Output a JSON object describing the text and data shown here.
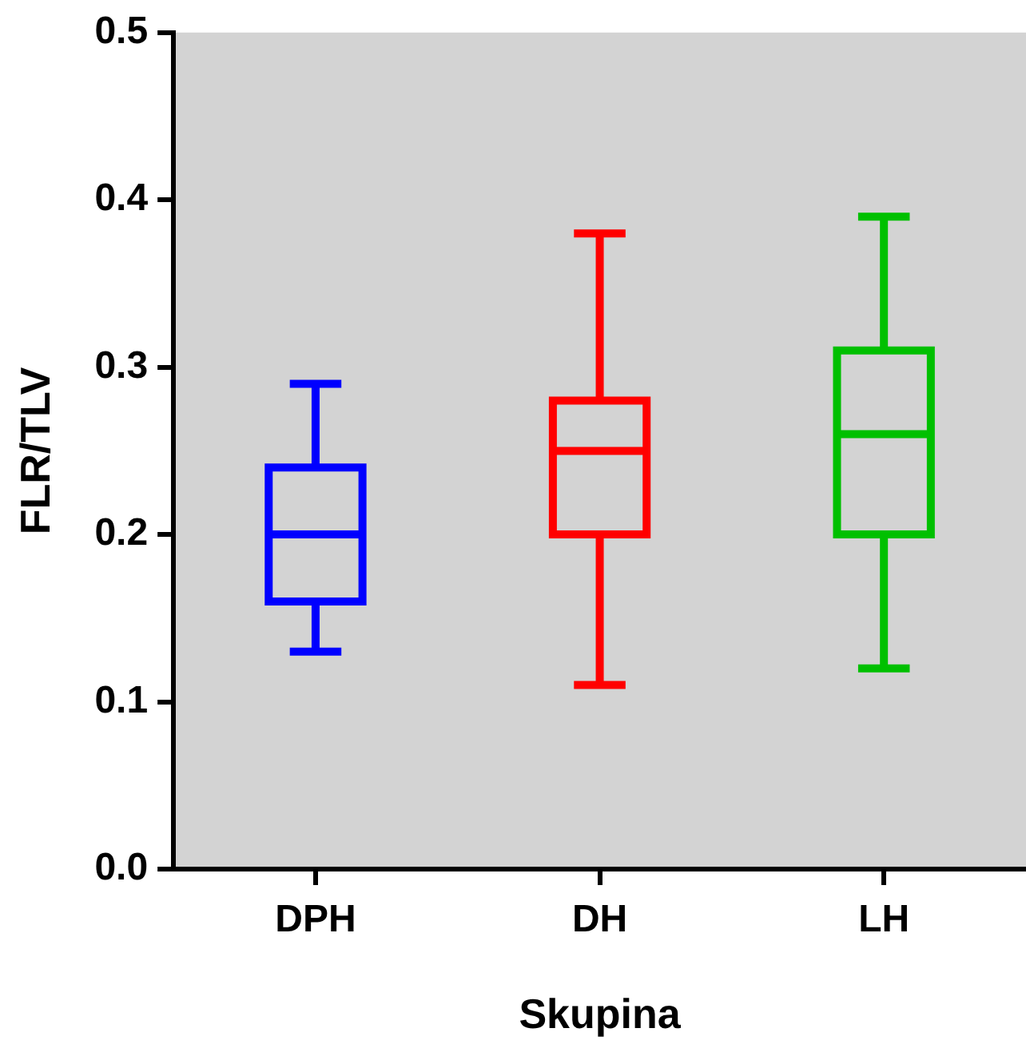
{
  "chart_data": {
    "type": "box",
    "xlabel": "Skupina",
    "ylabel": "FLR/TLV",
    "categories": [
      "DPH",
      "DH",
      "LH"
    ],
    "colors": [
      "#0000ff",
      "#ff0000",
      "#00c000"
    ],
    "boxes": [
      {
        "low": 0.13,
        "q1": 0.16,
        "median": 0.2,
        "q3": 0.24,
        "high": 0.29
      },
      {
        "low": 0.11,
        "q1": 0.2,
        "median": 0.25,
        "q3": 0.28,
        "high": 0.38
      },
      {
        "low": 0.12,
        "q1": 0.2,
        "median": 0.26,
        "q3": 0.31,
        "high": 0.39
      }
    ],
    "ylim": [
      0,
      0.5
    ],
    "yticks": [
      {
        "value": 0,
        "label": "0.0"
      },
      {
        "value": 0.1,
        "label": "0.1"
      },
      {
        "value": 0.2,
        "label": "0.2"
      },
      {
        "value": 0.3,
        "label": "0.3"
      },
      {
        "value": 0.4,
        "label": "0.4"
      },
      {
        "value": 0.5,
        "label": "0.5"
      }
    ],
    "grid": false,
    "legend": false
  }
}
